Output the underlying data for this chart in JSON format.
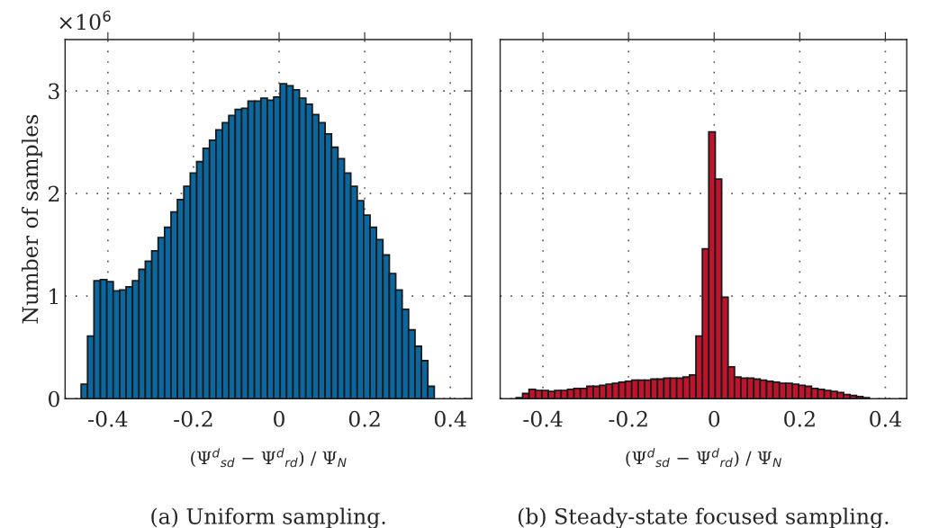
{
  "chart_data": [
    {
      "type": "histogram",
      "title": "(a) Uniform sampling.",
      "xlabel": "(Ψ$^{d}$$_{sd}$ − Ψ$^{d}$$_{rd}$) / Ψ$_{N}$",
      "ylabel": "Number of samples",
      "annotations": [
        "×10$^{6}$"
      ],
      "color": "#0a67a0",
      "bins": [
        -0.4625,
        -0.4475,
        -0.4325,
        -0.4175,
        -0.4025,
        -0.3875,
        -0.3725,
        -0.3575,
        -0.3425,
        -0.3275,
        -0.3125,
        -0.2975,
        -0.2825,
        -0.2675,
        -0.2525,
        -0.2375,
        -0.2225,
        -0.2075,
        -0.1925,
        -0.1775,
        -0.1625,
        -0.1475,
        -0.1325,
        -0.1175,
        -0.1025,
        -0.0875,
        -0.0725,
        -0.0575,
        -0.0425,
        -0.0275,
        -0.0125,
        0.0025,
        0.0175,
        0.0325,
        0.0475,
        0.0625,
        0.0775,
        0.0925,
        0.1075,
        0.1225,
        0.1375,
        0.1525,
        0.1675,
        0.1825,
        0.1975,
        0.2125,
        0.2275,
        0.2425,
        0.2575,
        0.2725,
        0.2875,
        0.3025,
        0.3175,
        0.3325,
        0.3475,
        0.3625
      ],
      "values": [
        0.14,
        0.61,
        1.15,
        1.16,
        1.14,
        1.05,
        1.06,
        1.09,
        1.15,
        1.26,
        1.34,
        1.44,
        1.57,
        1.67,
        1.82,
        1.94,
        2.07,
        2.2,
        2.31,
        2.44,
        2.52,
        2.62,
        2.69,
        2.76,
        2.82,
        2.83,
        2.9,
        2.9,
        2.93,
        2.91,
        2.94,
        3.07,
        3.05,
        3.01,
        2.93,
        2.87,
        2.77,
        2.69,
        2.58,
        2.45,
        2.34,
        2.2,
        2.07,
        1.93,
        1.79,
        1.67,
        1.55,
        1.4,
        1.22,
        1.06,
        0.87,
        0.67,
        0.51,
        0.37,
        0.12
      ],
      "xlim": [
        -0.5,
        0.45
      ],
      "xticks": [
        -0.4,
        -0.2,
        0,
        0.2,
        0.4
      ],
      "ylim": [
        0,
        3.5
      ],
      "yticks": [
        0,
        1,
        2,
        3
      ],
      "grid": true
    },
    {
      "type": "histogram",
      "title": "(b) Steady-state focused sampling.",
      "xlabel": "(Ψ$^{d}$$_{sd}$ − Ψ$^{d}$$_{rd}$) / Ψ$_{N}$",
      "color": "#c0132c",
      "bins": [
        -0.4625,
        -0.4475,
        -0.4325,
        -0.4175,
        -0.4025,
        -0.3875,
        -0.3725,
        -0.3575,
        -0.3425,
        -0.3275,
        -0.3125,
        -0.2975,
        -0.2825,
        -0.2675,
        -0.2525,
        -0.2375,
        -0.2225,
        -0.2075,
        -0.1925,
        -0.1775,
        -0.1625,
        -0.1475,
        -0.1325,
        -0.1175,
        -0.1025,
        -0.0875,
        -0.0725,
        -0.0575,
        -0.0425,
        -0.0275,
        -0.0125,
        0.0025,
        0.0175,
        0.0325,
        0.0475,
        0.0625,
        0.0775,
        0.0925,
        0.1075,
        0.1225,
        0.1375,
        0.1525,
        0.1675,
        0.1825,
        0.1975,
        0.2125,
        0.2275,
        0.2425,
        0.2575,
        0.2725,
        0.2875,
        0.3025,
        0.3175,
        0.3325,
        0.3475,
        0.3625
      ],
      "values": [
        0.01,
        0.05,
        0.09,
        0.08,
        0.08,
        0.07,
        0.08,
        0.08,
        0.09,
        0.1,
        0.1,
        0.12,
        0.12,
        0.13,
        0.14,
        0.15,
        0.16,
        0.17,
        0.18,
        0.18,
        0.18,
        0.19,
        0.19,
        0.2,
        0.2,
        0.2,
        0.21,
        0.23,
        0.61,
        1.46,
        2.6,
        2.14,
        0.99,
        0.31,
        0.21,
        0.2,
        0.2,
        0.19,
        0.18,
        0.17,
        0.16,
        0.15,
        0.15,
        0.14,
        0.13,
        0.12,
        0.1,
        0.09,
        0.08,
        0.07,
        0.06,
        0.04,
        0.03,
        0.02,
        0.01
      ],
      "xlim": [
        -0.5,
        0.45
      ],
      "xticks": [
        -0.4,
        -0.2,
        0,
        0.2,
        0.4
      ],
      "ylim": [
        0,
        3.5
      ],
      "yticks": [
        0,
        1,
        2,
        3
      ],
      "grid": true,
      "tick_labels": "x"
    }
  ]
}
